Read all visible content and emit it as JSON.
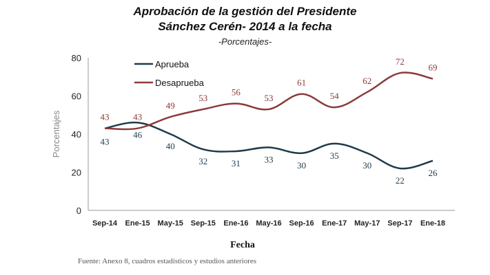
{
  "title_line1": "Aprobación de la gestión del Presidente",
  "title_line2": "Sánchez Cerén- 2014 a la fecha",
  "subtitle": "-Porcentajes-",
  "source": "Fuente: Anexo 8, cuadros estadísticos y estudios anteriores",
  "chart_data": {
    "type": "line",
    "categories": [
      "Sep-14",
      "Ene-15",
      "May-15",
      "Sep-15",
      "Ene-16",
      "May-16",
      "Sep-16",
      "Ene-17",
      "May-17",
      "Sep-17",
      "Ene-18"
    ],
    "series": [
      {
        "name": "Aprueba",
        "color": "#1f3a4a",
        "values": [
          43,
          46,
          40,
          32,
          31,
          33,
          30,
          35,
          30,
          22,
          26
        ]
      },
      {
        "name": "Desaprueba",
        "color": "#8b3a3a",
        "values": [
          43,
          43,
          49,
          53,
          56,
          53,
          61,
          54,
          62,
          72,
          69
        ]
      }
    ],
    "xlabel": "Fecha",
    "ylabel": "Porcentajes",
    "ylim": [
      0,
      80
    ],
    "yticks": [
      0,
      20,
      40,
      60,
      80
    ],
    "grid": false,
    "legend": "top-left"
  }
}
